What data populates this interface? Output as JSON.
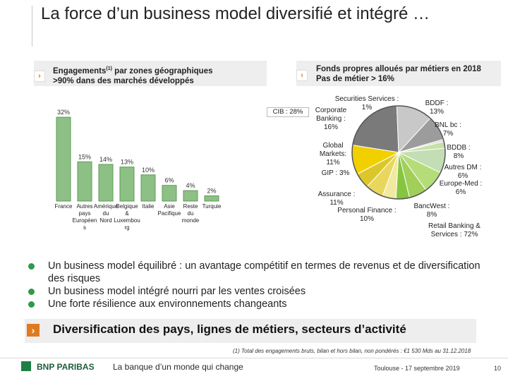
{
  "title": "La force d’un business model diversifié et intégré …",
  "left_header": {
    "line1_main": "Engagements",
    "line1_sup": "(1)",
    "line1_tail": " par zones géographiques",
    "line2": ">90% dans des marchés développés"
  },
  "right_header": {
    "line1": "Fonds propres alloués par métiers en 2018",
    "line2": "Pas de métier > 16%"
  },
  "chart_data": [
    {
      "type": "bar",
      "categories": [
        "France",
        "Autres pays Européens",
        "Amérique du Nord",
        "Belgique & Luxembourg",
        "Italie",
        "Asie Pacifique",
        "Reste du monde",
        "Turquie"
      ],
      "category_labels": [
        "France",
        "Autres pays Européen s",
        "Amérique du Nord",
        "Belgique & Luxembou rg",
        "Italie",
        "Asie Pacifique",
        "Reste du monde",
        "Turquie"
      ],
      "values": [
        32,
        15,
        14,
        13,
        10,
        6,
        4,
        2
      ],
      "value_labels": [
        "32%",
        "15%",
        "14%",
        "13%",
        "10%",
        "6%",
        "4%",
        "2%"
      ],
      "ylim": [
        0,
        35
      ],
      "bar_color": "#8cc084"
    },
    {
      "type": "pie",
      "slices": [
        {
          "label": "CIB : 28%",
          "value": 28,
          "color": "#7a7a7a"
        },
        {
          "label": "Corporate Banking : 16%",
          "value": 16,
          "color": "#c8c8c8"
        },
        {
          "label": "Global Markets: 11%",
          "value": 11,
          "color": "#9c9c9c"
        },
        {
          "label": "Securities Services : 1%",
          "value": 1,
          "color": "#d9d9d9"
        },
        {
          "label": "GIP : 3%",
          "value": 3,
          "color": "#c6e0a8"
        },
        {
          "label": "Assurance : 11%",
          "value": 11,
          "color": "#c3deb4"
        },
        {
          "label": "Personal Finance : 10%",
          "value": 10,
          "color": "#b4dd7a"
        },
        {
          "label": "BancWest : 8%",
          "value": 8,
          "color": "#a2cf5a"
        },
        {
          "label": "Europe-Med : 6%",
          "value": 6,
          "color": "#85c540"
        },
        {
          "label": "Autres DM : 6%",
          "value": 6,
          "color": "#f2e9a0"
        },
        {
          "label": "BDDB : 8%",
          "value": 8,
          "color": "#e8d75c"
        },
        {
          "label": "BNL bc : 7%",
          "value": 7,
          "color": "#dcc72a"
        },
        {
          "label": "BDDF : 13%",
          "value": 13,
          "color": "#f2d000"
        }
      ],
      "retail_label": "Retail Banking & Services : 72%"
    }
  ],
  "pie_labels": {
    "cib": "CIB : 28%",
    "securities": "Securities Services : 1%",
    "corporate": "Corporate Banking : 16%",
    "global_markets": "Global Markets: 11%",
    "gip": "GIP : 3%",
    "assurance": "Assurance : 11%",
    "personal_finance": "Personal Finance : 10%",
    "bddf": "BDDF : 13%",
    "bnl": "BNL bc : 7%",
    "bddb": "BDDB : 8%",
    "autres_dm": "Autres DM : 6%",
    "europe_med": "Europe-Med : 6%",
    "bancwest": "BancWest : 8%",
    "retail": "Retail Banking & Services : 72%"
  },
  "bullets": [
    "Un business model équilibré : un avantage compétitif en termes de revenus et de diversification des risques",
    "Un business model intégré nourri par les ventes croisées",
    "Une forte résilience aux environnements changeants"
  ],
  "diversification": "Diversification des pays, lignes de métiers, secteurs d’activité",
  "footnote": "(1) Total des engagements bruts, bilan et hors bilan, non pondérés : €1 530 Mds au 31.12.2018",
  "footer": {
    "logo": "BNP PARIBAS",
    "slogan": "La banque d’un monde qui change",
    "event": "Toulouse - 17 septembre 2019",
    "page": "10"
  },
  "colors": {
    "accent": "#e07a1f",
    "green": "#2f9a4a",
    "header_bg": "#eeeeee"
  }
}
